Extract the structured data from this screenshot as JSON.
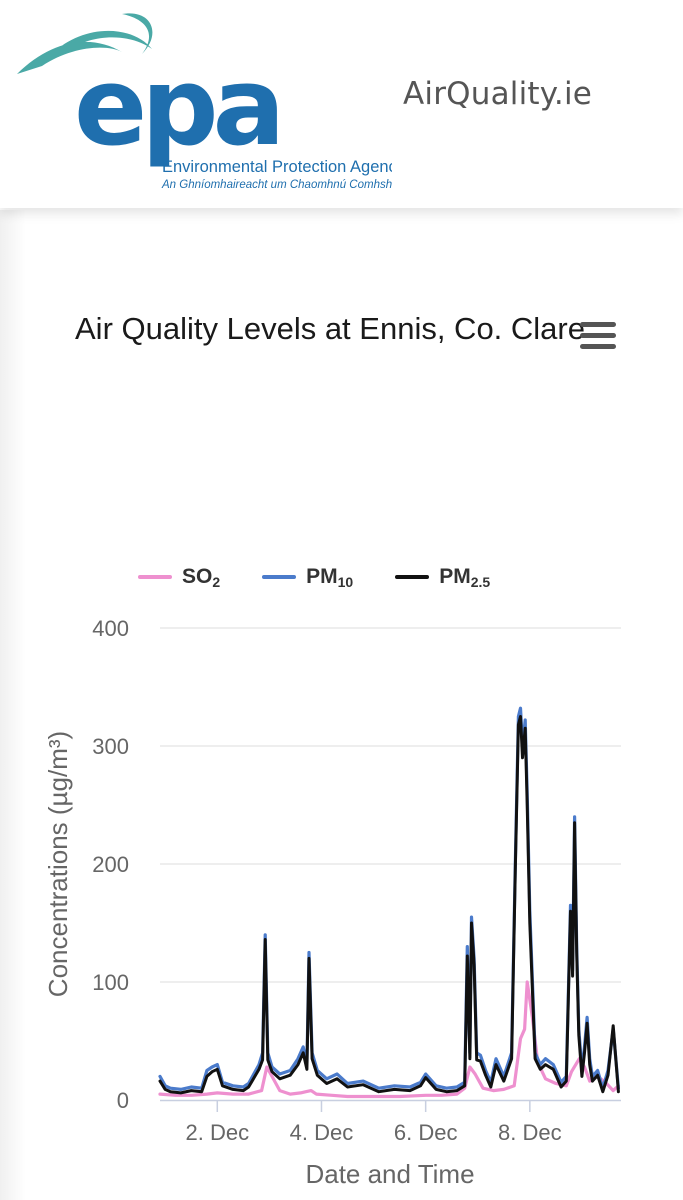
{
  "header": {
    "logo_text": "epa",
    "agency_name": "Environmental Protection Agency",
    "agency_name_irish": "An Ghníomhaireacht um Chaomhnú Comhshaoil",
    "site_name": "AirQuality.ie",
    "brand_color": "#1f6fae",
    "logo_wave_color": "#4aa9a6"
  },
  "menu": {
    "icon": "hamburger-menu-icon"
  },
  "chart_data": {
    "type": "line",
    "title": "Air Quality Levels at Ennis, Co. Clare",
    "xlabel": "Date and Time",
    "ylabel": "Concentrations (µg/m³)",
    "ylim": [
      0,
      400
    ],
    "yticks": [
      0,
      100,
      200,
      300,
      400
    ],
    "xtick_labels": [
      "2. Dec",
      "4. Dec",
      "6. Dec",
      "8. Dec"
    ],
    "xtick_days": [
      2,
      4,
      6,
      8
    ],
    "xlim": [
      0.9,
      9.75
    ],
    "grid": true,
    "legend_position": "top-left",
    "series": [
      {
        "name": "SO2",
        "name_base": "SO",
        "name_sub": "2",
        "color": "#ee90cf",
        "x": [
          0.9,
          1.2,
          1.5,
          1.8,
          2.0,
          2.3,
          2.6,
          2.85,
          2.95,
          3.05,
          3.2,
          3.4,
          3.6,
          3.7,
          3.8,
          3.9,
          4.2,
          4.5,
          5.0,
          5.5,
          6.0,
          6.3,
          6.6,
          6.75,
          6.85,
          6.95,
          7.1,
          7.3,
          7.5,
          7.7,
          7.82,
          7.9,
          7.95,
          8.05,
          8.15,
          8.3,
          8.5,
          8.7,
          8.8,
          8.95,
          9.05,
          9.15,
          9.3,
          9.45,
          9.6,
          9.7
        ],
        "y": [
          5,
          4,
          4,
          5,
          6,
          5,
          5,
          8,
          28,
          20,
          8,
          5,
          6,
          7,
          8,
          5,
          4,
          3,
          3,
          3,
          4,
          4,
          5,
          10,
          28,
          22,
          10,
          8,
          9,
          12,
          52,
          60,
          100,
          70,
          32,
          18,
          14,
          12,
          24,
          35,
          28,
          16,
          20,
          15,
          8,
          12
        ]
      },
      {
        "name": "PM10",
        "name_base": "PM",
        "name_sub": "10",
        "color": "#4b7bcb",
        "x": [
          0.9,
          1.0,
          1.1,
          1.3,
          1.5,
          1.7,
          1.8,
          1.9,
          2.0,
          2.1,
          2.3,
          2.5,
          2.6,
          2.8,
          2.87,
          2.92,
          2.97,
          3.05,
          3.2,
          3.4,
          3.55,
          3.65,
          3.72,
          3.76,
          3.82,
          3.92,
          4.1,
          4.3,
          4.5,
          4.8,
          5.1,
          5.4,
          5.7,
          5.9,
          6.0,
          6.2,
          6.4,
          6.6,
          6.75,
          6.8,
          6.85,
          6.88,
          6.93,
          6.98,
          7.05,
          7.15,
          7.25,
          7.35,
          7.5,
          7.65,
          7.72,
          7.78,
          7.82,
          7.86,
          7.91,
          7.95,
          8.0,
          8.1,
          8.2,
          8.3,
          8.45,
          8.6,
          8.7,
          8.78,
          8.82,
          8.86,
          8.9,
          8.94,
          9.0,
          9.05,
          9.1,
          9.15,
          9.2,
          9.3,
          9.4,
          9.5,
          9.6,
          9.7
        ],
        "y": [
          20,
          12,
          10,
          9,
          11,
          10,
          25,
          28,
          30,
          15,
          12,
          11,
          14,
          30,
          40,
          140,
          40,
          28,
          22,
          25,
          35,
          45,
          30,
          125,
          40,
          25,
          18,
          22,
          14,
          16,
          10,
          12,
          11,
          15,
          22,
          12,
          10,
          11,
          15,
          130,
          40,
          155,
          120,
          40,
          38,
          25,
          15,
          35,
          20,
          40,
          200,
          325,
          332,
          300,
          322,
          260,
          160,
          40,
          30,
          35,
          30,
          15,
          20,
          165,
          110,
          240,
          130,
          60,
          25,
          45,
          70,
          35,
          20,
          25,
          10,
          25,
          60,
          10
        ],
        "hidden_note": ""
      },
      {
        "name": "PM2.5",
        "name_base": "PM",
        "name_sub": "2.5",
        "color": "#111111",
        "x": [
          0.9,
          1.0,
          1.1,
          1.3,
          1.5,
          1.7,
          1.8,
          1.9,
          2.0,
          2.1,
          2.3,
          2.5,
          2.6,
          2.8,
          2.87,
          2.92,
          2.97,
          3.05,
          3.2,
          3.4,
          3.55,
          3.65,
          3.72,
          3.76,
          3.82,
          3.92,
          4.1,
          4.3,
          4.5,
          4.8,
          5.1,
          5.4,
          5.7,
          5.9,
          6.0,
          6.2,
          6.4,
          6.6,
          6.75,
          6.8,
          6.85,
          6.88,
          6.93,
          6.98,
          7.05,
          7.15,
          7.25,
          7.35,
          7.5,
          7.65,
          7.72,
          7.78,
          7.82,
          7.86,
          7.91,
          7.95,
          8.0,
          8.1,
          8.2,
          8.3,
          8.45,
          8.6,
          8.7,
          8.78,
          8.82,
          8.86,
          8.9,
          8.94,
          9.0,
          9.05,
          9.1,
          9.15,
          9.2,
          9.3,
          9.4,
          9.5,
          9.6,
          9.7
        ],
        "y": [
          16,
          9,
          7,
          6,
          8,
          7,
          20,
          24,
          26,
          12,
          9,
          8,
          11,
          26,
          34,
          136,
          34,
          24,
          18,
          21,
          30,
          40,
          26,
          120,
          35,
          21,
          14,
          18,
          11,
          13,
          7,
          9,
          8,
          12,
          19,
          9,
          7,
          8,
          12,
          122,
          35,
          150,
          115,
          34,
          33,
          21,
          11,
          30,
          16,
          35,
          195,
          318,
          325,
          290,
          315,
          250,
          150,
          35,
          26,
          30,
          26,
          11,
          16,
          160,
          105,
          235,
          125,
          55,
          20,
          40,
          65,
          30,
          16,
          21,
          7,
          21,
          63,
          7
        ]
      }
    ]
  }
}
